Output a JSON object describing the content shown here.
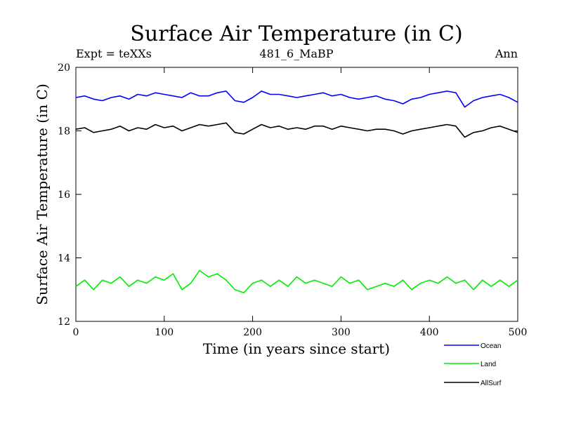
{
  "chart_data": {
    "type": "line",
    "title": "Surface Air Temperature (in C)",
    "subtitle": "481_6_MaBP",
    "top_left_label": "Expt = teXXs",
    "top_right_label": "Ann",
    "xlabel": "Time (in years since start)",
    "ylabel": "Surface Air Temperature (in C)",
    "xlim": [
      0,
      500
    ],
    "ylim": [
      12,
      20
    ],
    "xticks": [
      0,
      100,
      200,
      300,
      400,
      500
    ],
    "yticks": [
      12,
      14,
      16,
      18,
      20
    ],
    "xtick_labels": [
      "0",
      "100",
      "200",
      "300",
      "400",
      "500"
    ],
    "ytick_labels": [
      "12",
      "14",
      "16",
      "18",
      "20"
    ],
    "legend_position": "bottom-right",
    "series": [
      {
        "name": "Ocean",
        "color": "#0000ff",
        "x": [
          0,
          10,
          20,
          30,
          40,
          50,
          60,
          70,
          80,
          90,
          100,
          110,
          120,
          130,
          140,
          150,
          160,
          170,
          180,
          190,
          200,
          210,
          220,
          230,
          240,
          250,
          260,
          270,
          280,
          290,
          300,
          310,
          320,
          330,
          340,
          350,
          360,
          370,
          380,
          390,
          400,
          410,
          420,
          430,
          440,
          450,
          460,
          470,
          480,
          490,
          500
        ],
        "values": [
          19.05,
          19.1,
          19.0,
          18.95,
          19.05,
          19.1,
          19.0,
          19.15,
          19.1,
          19.2,
          19.15,
          19.1,
          19.05,
          19.2,
          19.1,
          19.1,
          19.2,
          19.25,
          18.95,
          18.9,
          19.05,
          19.25,
          19.15,
          19.15,
          19.1,
          19.05,
          19.1,
          19.15,
          19.2,
          19.1,
          19.15,
          19.05,
          19.0,
          19.05,
          19.1,
          19.0,
          18.95,
          18.85,
          19.0,
          19.05,
          19.15,
          19.2,
          19.25,
          19.2,
          18.75,
          18.95,
          19.05,
          19.1,
          19.15,
          19.05,
          18.9
        ]
      },
      {
        "name": "Land",
        "color": "#00ee00",
        "x": [
          0,
          10,
          20,
          30,
          40,
          50,
          60,
          70,
          80,
          90,
          100,
          110,
          120,
          130,
          140,
          150,
          160,
          170,
          180,
          190,
          200,
          210,
          220,
          230,
          240,
          250,
          260,
          270,
          280,
          290,
          300,
          310,
          320,
          330,
          340,
          350,
          360,
          370,
          380,
          390,
          400,
          410,
          420,
          430,
          440,
          450,
          460,
          470,
          480,
          490,
          500
        ],
        "values": [
          13.1,
          13.3,
          13.0,
          13.3,
          13.2,
          13.4,
          13.1,
          13.3,
          13.2,
          13.4,
          13.3,
          13.5,
          13.0,
          13.2,
          13.6,
          13.4,
          13.5,
          13.3,
          13.0,
          12.9,
          13.2,
          13.3,
          13.1,
          13.3,
          13.1,
          13.4,
          13.2,
          13.3,
          13.2,
          13.1,
          13.4,
          13.2,
          13.3,
          13.0,
          13.1,
          13.2,
          13.1,
          13.3,
          13.0,
          13.2,
          13.3,
          13.2,
          13.4,
          13.2,
          13.3,
          13.0,
          13.3,
          13.1,
          13.3,
          13.1,
          13.3
        ]
      },
      {
        "name": "AllSurf",
        "color": "#000000",
        "x": [
          0,
          10,
          20,
          30,
          40,
          50,
          60,
          70,
          80,
          90,
          100,
          110,
          120,
          130,
          140,
          150,
          160,
          170,
          180,
          190,
          200,
          210,
          220,
          230,
          240,
          250,
          260,
          270,
          280,
          290,
          300,
          310,
          320,
          330,
          340,
          350,
          360,
          370,
          380,
          390,
          400,
          410,
          420,
          430,
          440,
          450,
          460,
          470,
          480,
          490,
          500
        ],
        "values": [
          18.05,
          18.1,
          17.95,
          18.0,
          18.05,
          18.15,
          18.0,
          18.1,
          18.05,
          18.2,
          18.1,
          18.15,
          18.0,
          18.1,
          18.2,
          18.15,
          18.2,
          18.25,
          17.95,
          17.9,
          18.05,
          18.2,
          18.1,
          18.15,
          18.05,
          18.1,
          18.05,
          18.15,
          18.15,
          18.05,
          18.15,
          18.1,
          18.05,
          18.0,
          18.05,
          18.05,
          18.0,
          17.9,
          18.0,
          18.05,
          18.1,
          18.15,
          18.2,
          18.15,
          17.8,
          17.95,
          18.0,
          18.1,
          18.15,
          18.05,
          17.95
        ]
      }
    ]
  }
}
